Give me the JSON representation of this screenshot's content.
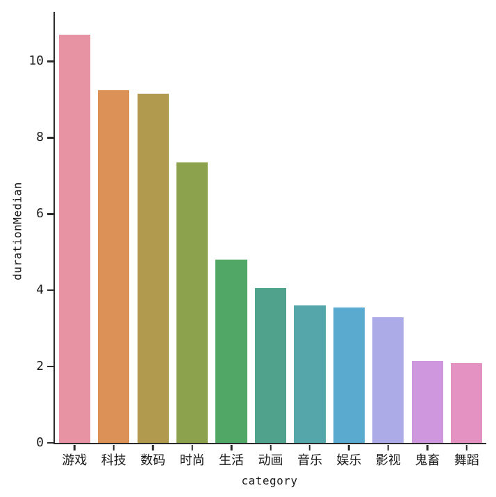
{
  "chart_data": {
    "type": "bar",
    "title": "",
    "xlabel": "category",
    "ylabel": "durationMedian",
    "categories": [
      "游戏",
      "科技",
      "数码",
      "时尚",
      "生活",
      "动画",
      "音乐",
      "娱乐",
      "影视",
      "鬼畜",
      "舞蹈"
    ],
    "values": [
      10.7,
      9.25,
      9.15,
      7.35,
      4.8,
      4.05,
      3.6,
      3.55,
      3.3,
      2.15,
      2.1
    ],
    "bar_colors": [
      "#e793a3",
      "#dc9156",
      "#b19a4d",
      "#8ca24d",
      "#51a866",
      "#50a28c",
      "#54a6ab",
      "#5aaacf",
      "#adaae8",
      "#cf97dd",
      "#e492c1"
    ],
    "yticks": [
      0,
      2,
      4,
      6,
      8,
      10
    ],
    "ylim": [
      0,
      11.3
    ],
    "grid": false,
    "legend": null,
    "background_color": "#ffffff",
    "axis_color": "#2b2b2b",
    "bar_width_fraction": 0.8
  }
}
